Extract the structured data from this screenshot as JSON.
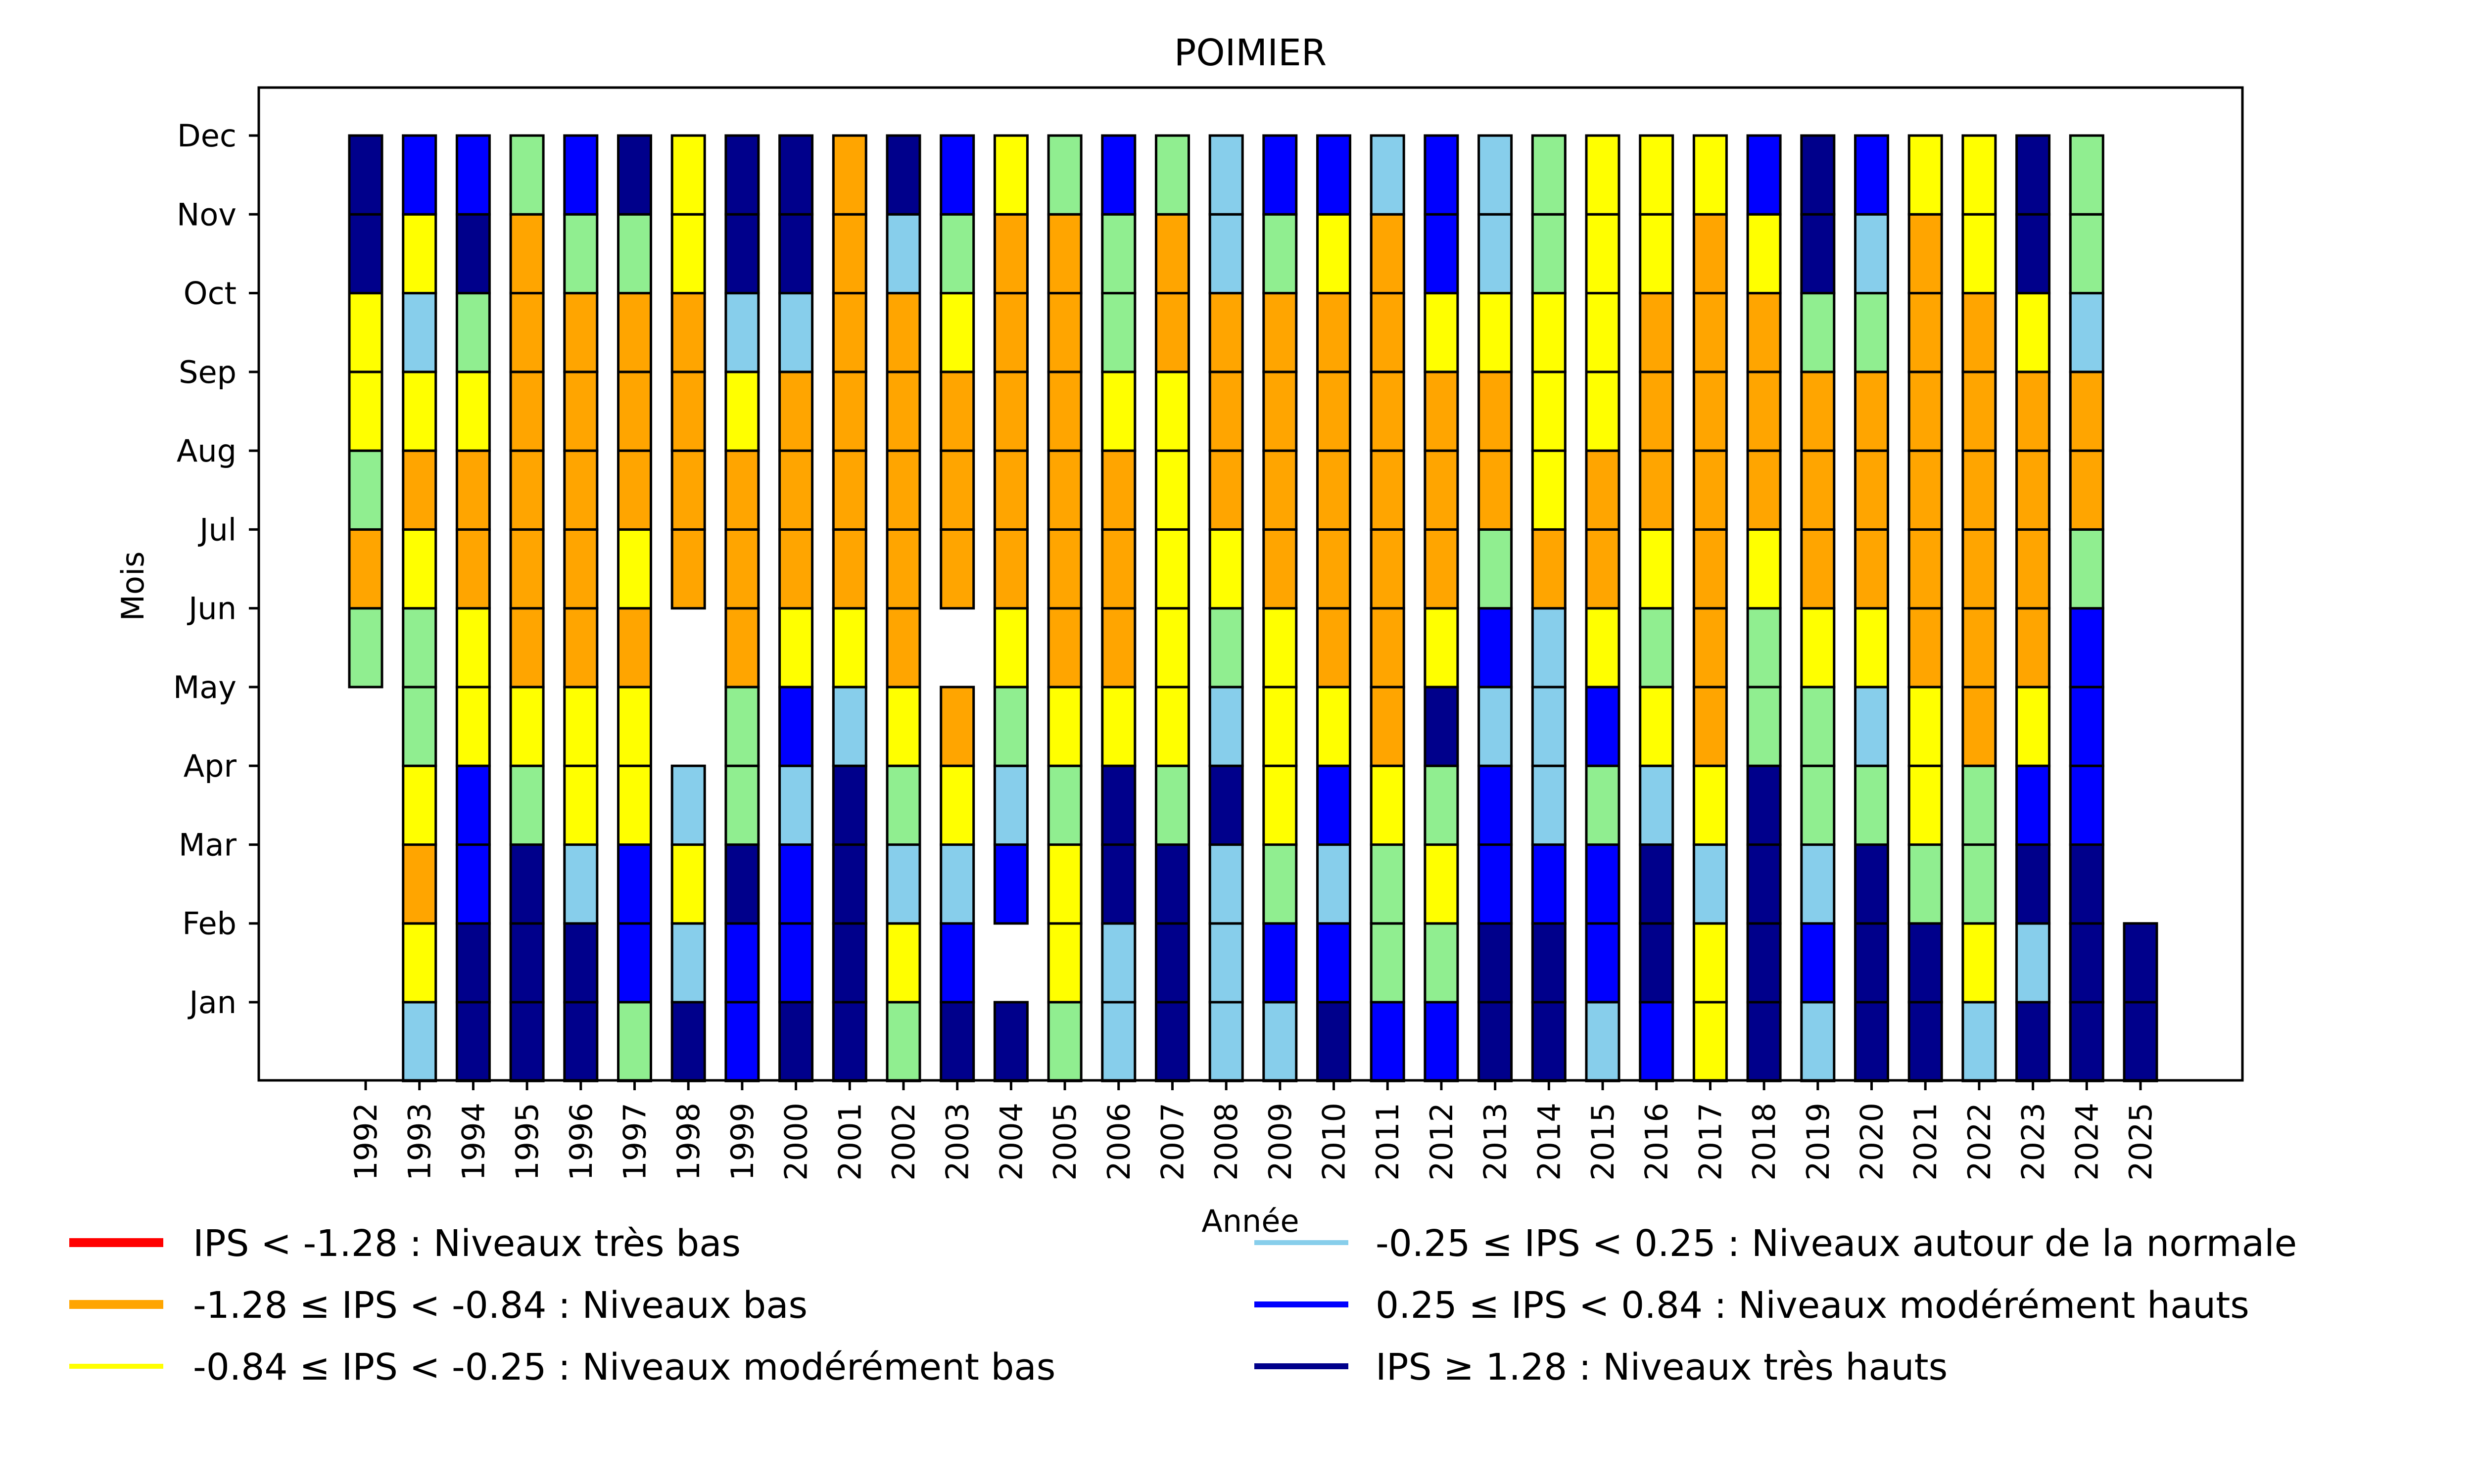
{
  "chart_data": {
    "type": "heatmap",
    "title": "POIMIER",
    "xlabel": "Année",
    "ylabel": "Mois",
    "years": [
      1992,
      1993,
      1994,
      1995,
      1996,
      1997,
      1998,
      1999,
      2000,
      2001,
      2002,
      2003,
      2004,
      2005,
      2006,
      2007,
      2008,
      2009,
      2010,
      2011,
      2012,
      2013,
      2014,
      2015,
      2016,
      2017,
      2018,
      2019,
      2020,
      2021,
      2022,
      2023,
      2024,
      2025
    ],
    "months": [
      "Jan",
      "Feb",
      "Mar",
      "Apr",
      "May",
      "Jun",
      "Jul",
      "Aug",
      "Sep",
      "Oct",
      "Nov",
      "Dec"
    ],
    "category_colors": {
      "tres_bas": "#ff0000",
      "bas": "#ffa500",
      "moderement_bas": "#ffff00",
      "proche_normale_bas": "#90ee90",
      "autour_normale": "#87ceeb",
      "moderement_hauts": "#0000ff",
      "tres_hauts": "#00008b"
    },
    "cells_note": "Each year: 12 monthly categories Jan→Dec; null = no data",
    "cells": {
      "1992": [
        null,
        null,
        null,
        null,
        null,
        "proche_normale_bas",
        "bas",
        "proche_normale_bas",
        "moderement_bas",
        "moderement_bas",
        "tres_hauts",
        "tres_hauts"
      ],
      "1993": [
        "autour_normale",
        "moderement_bas",
        "bas",
        "moderement_bas",
        "proche_normale_bas",
        "proche_normale_bas",
        "moderement_bas",
        "bas",
        "moderement_bas",
        "autour_normale",
        "moderement_bas",
        "moderement_hauts"
      ],
      "1994": [
        "tres_hauts",
        "tres_hauts",
        "moderement_hauts",
        "moderement_hauts",
        "moderement_bas",
        "moderement_bas",
        "bas",
        "bas",
        "moderement_bas",
        "proche_normale_bas",
        "tres_hauts",
        "moderement_hauts"
      ],
      "1995": [
        "tres_hauts",
        "tres_hauts",
        "tres_hauts",
        "proche_normale_bas",
        "moderement_bas",
        "bas",
        "bas",
        "bas",
        "bas",
        "bas",
        "bas",
        "proche_normale_bas"
      ],
      "1996": [
        "tres_hauts",
        "tres_hauts",
        "autour_normale",
        "moderement_bas",
        "moderement_bas",
        "bas",
        "bas",
        "bas",
        "bas",
        "bas",
        "proche_normale_bas",
        "moderement_hauts"
      ],
      "1997": [
        "proche_normale_bas",
        "moderement_hauts",
        "moderement_hauts",
        "moderement_bas",
        "moderement_bas",
        "bas",
        "moderement_bas",
        "bas",
        "bas",
        "bas",
        "proche_normale_bas",
        "tres_hauts"
      ],
      "1998": [
        "tres_hauts",
        "autour_normale",
        "moderement_bas",
        "autour_normale",
        null,
        null,
        "bas",
        "bas",
        "bas",
        "bas",
        "moderement_bas",
        "moderement_bas"
      ],
      "1999": [
        "moderement_hauts",
        "moderement_hauts",
        "tres_hauts",
        "proche_normale_bas",
        "proche_normale_bas",
        "bas",
        "bas",
        "bas",
        "moderement_bas",
        "autour_normale",
        "tres_hauts",
        "tres_hauts"
      ],
      "2000": [
        "tres_hauts",
        "moderement_hauts",
        "moderement_hauts",
        "autour_normale",
        "moderement_hauts",
        "moderement_bas",
        "bas",
        "bas",
        "bas",
        "autour_normale",
        "tres_hauts",
        "tres_hauts"
      ],
      "2001": [
        "tres_hauts",
        "tres_hauts",
        "tres_hauts",
        "tres_hauts",
        "autour_normale",
        "moderement_bas",
        "bas",
        "bas",
        "bas",
        "bas",
        "bas",
        "bas"
      ],
      "2002": [
        "proche_normale_bas",
        "moderement_bas",
        "autour_normale",
        "proche_normale_bas",
        "moderement_bas",
        "bas",
        "bas",
        "bas",
        "bas",
        "bas",
        "autour_normale",
        "tres_hauts"
      ],
      "2003": [
        "tres_hauts",
        "moderement_hauts",
        "autour_normale",
        "moderement_bas",
        "bas",
        null,
        "bas",
        "bas",
        "bas",
        "moderement_bas",
        "proche_normale_bas",
        "moderement_hauts"
      ],
      "2004": [
        "tres_hauts",
        null,
        "moderement_hauts",
        "autour_normale",
        "proche_normale_bas",
        "moderement_bas",
        "bas",
        "bas",
        "bas",
        "bas",
        "bas",
        "moderement_bas"
      ],
      "2005": [
        "proche_normale_bas",
        "moderement_bas",
        "moderement_bas",
        "proche_normale_bas",
        "moderement_bas",
        "bas",
        "bas",
        "bas",
        "bas",
        "bas",
        "bas",
        "proche_normale_bas"
      ],
      "2006": [
        "autour_normale",
        "autour_normale",
        "tres_hauts",
        "tres_hauts",
        "moderement_bas",
        "bas",
        "bas",
        "bas",
        "moderement_bas",
        "proche_normale_bas",
        "proche_normale_bas",
        "moderement_hauts"
      ],
      "2007": [
        "tres_hauts",
        "tres_hauts",
        "tres_hauts",
        "proche_normale_bas",
        "moderement_bas",
        "moderement_bas",
        "moderement_bas",
        "moderement_bas",
        "moderement_bas",
        "bas",
        "bas",
        "proche_normale_bas"
      ],
      "2008": [
        "autour_normale",
        "autour_normale",
        "autour_normale",
        "tres_hauts",
        "autour_normale",
        "proche_normale_bas",
        "moderement_bas",
        "bas",
        "bas",
        "bas",
        "autour_normale",
        "autour_normale"
      ],
      "2009": [
        "autour_normale",
        "moderement_hauts",
        "proche_normale_bas",
        "moderement_bas",
        "moderement_bas",
        "moderement_bas",
        "bas",
        "bas",
        "bas",
        "bas",
        "proche_normale_bas",
        "moderement_hauts"
      ],
      "2010": [
        "tres_hauts",
        "moderement_hauts",
        "autour_normale",
        "moderement_hauts",
        "moderement_bas",
        "bas",
        "bas",
        "bas",
        "bas",
        "bas",
        "moderement_bas",
        "moderement_hauts"
      ],
      "2011": [
        "moderement_hauts",
        "proche_normale_bas",
        "proche_normale_bas",
        "moderement_bas",
        "bas",
        "bas",
        "bas",
        "bas",
        "bas",
        "bas",
        "bas",
        "autour_normale"
      ],
      "2012": [
        "moderement_hauts",
        "proche_normale_bas",
        "moderement_bas",
        "proche_normale_bas",
        "tres_hauts",
        "moderement_bas",
        "bas",
        "bas",
        "bas",
        "moderement_bas",
        "moderement_hauts",
        "moderement_hauts"
      ],
      "2013": [
        "tres_hauts",
        "tres_hauts",
        "moderement_hauts",
        "moderement_hauts",
        "autour_normale",
        "moderement_hauts",
        "proche_normale_bas",
        "bas",
        "bas",
        "moderement_bas",
        "autour_normale",
        "autour_normale"
      ],
      "2014": [
        "tres_hauts",
        "tres_hauts",
        "moderement_hauts",
        "autour_normale",
        "autour_normale",
        "autour_normale",
        "bas",
        "moderement_bas",
        "moderement_bas",
        "moderement_bas",
        "proche_normale_bas",
        "proche_normale_bas"
      ],
      "2015": [
        "autour_normale",
        "moderement_hauts",
        "moderement_hauts",
        "proche_normale_bas",
        "moderement_hauts",
        "moderement_bas",
        "bas",
        "bas",
        "moderement_bas",
        "moderement_bas",
        "moderement_bas",
        "moderement_bas"
      ],
      "2016": [
        "moderement_hauts",
        "tres_hauts",
        "tres_hauts",
        "autour_normale",
        "moderement_bas",
        "proche_normale_bas",
        "moderement_bas",
        "bas",
        "bas",
        "bas",
        "moderement_bas",
        "moderement_bas"
      ],
      "2017": [
        "moderement_bas",
        "moderement_bas",
        "autour_normale",
        "moderement_bas",
        "bas",
        "bas",
        "bas",
        "bas",
        "bas",
        "bas",
        "bas",
        "moderement_bas"
      ],
      "2018": [
        "tres_hauts",
        "tres_hauts",
        "tres_hauts",
        "tres_hauts",
        "proche_normale_bas",
        "proche_normale_bas",
        "moderement_bas",
        "bas",
        "bas",
        "bas",
        "moderement_bas",
        "moderement_hauts"
      ],
      "2019": [
        "autour_normale",
        "moderement_hauts",
        "autour_normale",
        "proche_normale_bas",
        "proche_normale_bas",
        "moderement_bas",
        "bas",
        "bas",
        "bas",
        "proche_normale_bas",
        "tres_hauts",
        "tres_hauts"
      ],
      "2020": [
        "tres_hauts",
        "tres_hauts",
        "tres_hauts",
        "proche_normale_bas",
        "autour_normale",
        "moderement_bas",
        "bas",
        "bas",
        "bas",
        "proche_normale_bas",
        "autour_normale",
        "moderement_hauts"
      ],
      "2021": [
        "tres_hauts",
        "tres_hauts",
        "proche_normale_bas",
        "moderement_bas",
        "moderement_bas",
        "bas",
        "bas",
        "bas",
        "bas",
        "bas",
        "bas",
        "moderement_bas"
      ],
      "2022": [
        "autour_normale",
        "moderement_bas",
        "proche_normale_bas",
        "proche_normale_bas",
        "bas",
        "bas",
        "bas",
        "bas",
        "bas",
        "bas",
        "moderement_bas",
        "moderement_bas"
      ],
      "2023": [
        "tres_hauts",
        "autour_normale",
        "tres_hauts",
        "moderement_hauts",
        "moderement_bas",
        "bas",
        "bas",
        "bas",
        "bas",
        "moderement_bas",
        "tres_hauts",
        "tres_hauts"
      ],
      "2024": [
        "tres_hauts",
        "tres_hauts",
        "tres_hauts",
        "moderement_hauts",
        "moderement_hauts",
        "moderement_hauts",
        "proche_normale_bas",
        "bas",
        "bas",
        "autour_normale",
        "proche_normale_bas",
        "proche_normale_bas"
      ],
      "2025": [
        "tres_hauts",
        "tres_hauts",
        null,
        null,
        null,
        null,
        null,
        null,
        null,
        null,
        null,
        null
      ]
    },
    "legend": {
      "placement": "bottom",
      "entries": [
        {
          "key": "tres_bas",
          "label": "IPS < -1.28 : Niveaux très bas"
        },
        {
          "key": "bas",
          "label": "-1.28 ≤ IPS < -0.84 : Niveaux bas"
        },
        {
          "key": "moderement_bas",
          "label": "-0.84 ≤ IPS < -0.25 : Niveaux modérément bas"
        },
        {
          "key": "autour_normale",
          "label": "-0.25 ≤ IPS < 0.25 : Niveaux autour de la normale"
        },
        {
          "key": "moderement_hauts",
          "label": "0.25 ≤ IPS < 0.84 : Niveaux modérément hauts"
        },
        {
          "key": "tres_hauts",
          "label": "IPS ≥ 1.28 : Niveaux très hauts"
        }
      ]
    },
    "grid": false
  }
}
